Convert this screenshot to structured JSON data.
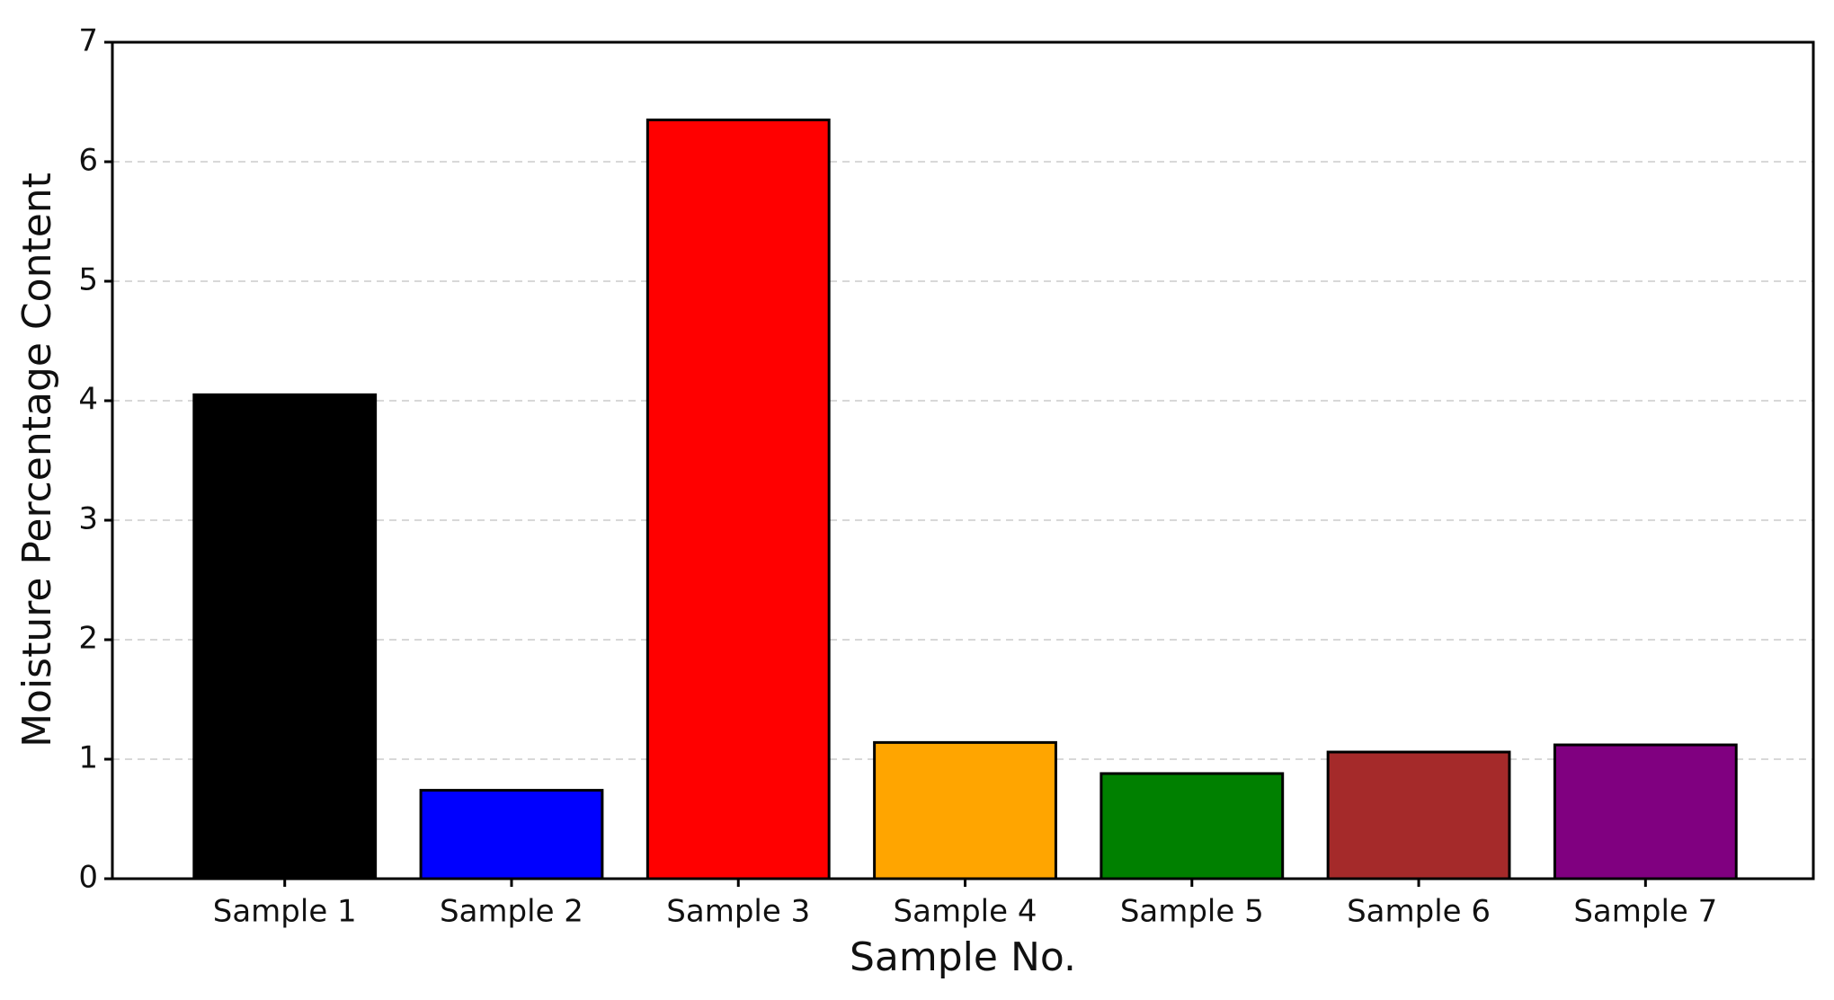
{
  "chart_data": {
    "type": "bar",
    "xlabel": "Sample No.",
    "ylabel": "Moisture Percentage Content",
    "categories": [
      "Sample 1",
      "Sample 2",
      "Sample 3",
      "Sample 4",
      "Sample 5",
      "Sample 6",
      "Sample 7"
    ],
    "values": [
      4.05,
      0.74,
      6.35,
      1.14,
      0.88,
      1.06,
      1.12
    ],
    "colors": [
      "#000000",
      "#0000ff",
      "#ff0000",
      "#ffa500",
      "#008000",
      "#a52a2a",
      "#800080"
    ],
    "ylim": [
      0,
      7
    ],
    "yticks": [
      0,
      1,
      2,
      3,
      4,
      5,
      6,
      7
    ],
    "grid": true
  }
}
